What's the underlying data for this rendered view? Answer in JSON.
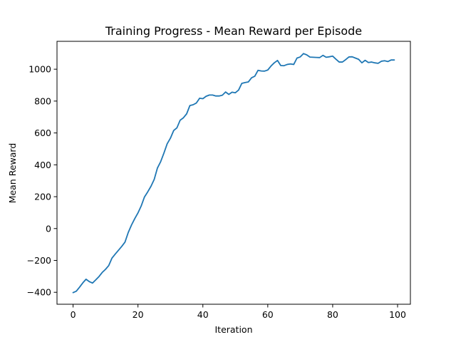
{
  "chart_data": {
    "type": "line",
    "title": "Training Progress - Mean Reward per Episode",
    "xlabel": "Iteration",
    "ylabel": "Mean Reward",
    "xlim": [
      -4.95,
      103.95
    ],
    "ylim": [
      -475,
      1175
    ],
    "xticks": [
      0,
      20,
      40,
      60,
      80,
      100
    ],
    "yticks": [
      -400,
      -200,
      0,
      200,
      400,
      600,
      800,
      1000
    ],
    "grid": false,
    "legend": "none",
    "series": [
      {
        "color": "#1f77b4",
        "x": [
          0,
          1,
          2,
          3,
          4,
          5,
          6,
          7,
          8,
          9,
          10,
          11,
          12,
          13,
          14,
          15,
          16,
          17,
          18,
          19,
          20,
          21,
          22,
          23,
          24,
          25,
          26,
          27,
          28,
          29,
          30,
          31,
          32,
          33,
          34,
          35,
          36,
          37,
          38,
          39,
          40,
          41,
          42,
          43,
          44,
          45,
          46,
          47,
          48,
          49,
          50,
          51,
          52,
          53,
          54,
          55,
          56,
          57,
          58,
          59,
          60,
          61,
          62,
          63,
          64,
          65,
          66,
          67,
          68,
          69,
          70,
          71,
          72,
          73,
          74,
          75,
          76,
          77,
          78,
          79,
          80,
          81,
          82,
          83,
          84,
          85,
          86,
          87,
          88,
          89,
          90,
          91,
          92,
          93,
          94,
          95,
          96,
          97,
          98,
          99
        ],
        "values": [
          -402,
          -393,
          -368,
          -341,
          -318,
          -333,
          -342,
          -322,
          -301,
          -275,
          -256,
          -232,
          -185,
          -160,
          -136,
          -112,
          -85,
          -25,
          22,
          62,
          98,
          142,
          198,
          230,
          265,
          308,
          380,
          420,
          474,
          532,
          567,
          615,
          632,
          680,
          695,
          720,
          772,
          777,
          788,
          818,
          815,
          830,
          838,
          838,
          832,
          832,
          837,
          857,
          842,
          856,
          852,
          869,
          911,
          916,
          920,
          946,
          956,
          993,
          989,
          988,
          995,
          1020,
          1040,
          1055,
          1023,
          1022,
          1030,
          1033,
          1030,
          1070,
          1077,
          1098,
          1090,
          1076,
          1075,
          1074,
          1073,
          1087,
          1075,
          1078,
          1082,
          1063,
          1045,
          1045,
          1060,
          1077,
          1078,
          1070,
          1062,
          1040,
          1056,
          1042,
          1045,
          1040,
          1037,
          1050,
          1053,
          1048,
          1058,
          1058
        ]
      }
    ]
  }
}
